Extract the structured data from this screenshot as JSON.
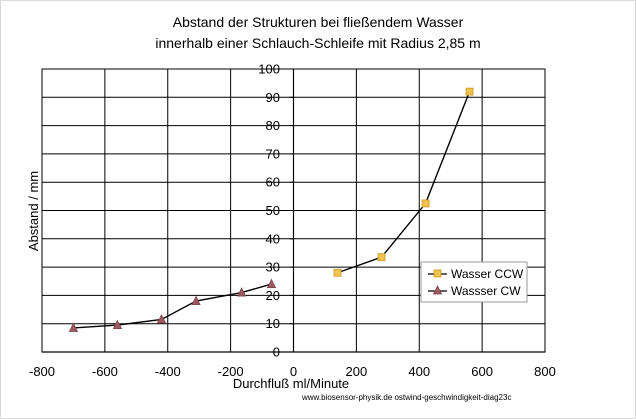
{
  "chart_data": {
    "type": "scatter",
    "title": "Abstand der Strukturen bei fließendem Wasser",
    "subtitle": "innerhalb einer Schlauch-Schleife mit Radius 2,85 m",
    "xlabel": "Durchfluß ml/Minute",
    "ylabel": "Abstand / mm",
    "xlim": [
      -800,
      800
    ],
    "ylim": [
      0,
      100
    ],
    "x_ticks": [
      "-800",
      "-600",
      "-400",
      "-200",
      "0",
      "200",
      "400",
      "600",
      "800"
    ],
    "y_ticks": [
      "0",
      "10",
      "20",
      "30",
      "40",
      "50",
      "60",
      "70",
      "80",
      "90",
      "100"
    ],
    "grid": true,
    "legend_position": "right",
    "series": [
      {
        "name": "Wasser CCW",
        "marker": "square",
        "color": "#f2c14e",
        "line_color": "#000000",
        "x": [
          140,
          280,
          420,
          560
        ],
        "y": [
          28,
          33.5,
          52.5,
          92
        ]
      },
      {
        "name": "Wassser CW",
        "marker": "triangle",
        "color": "#9b5b61",
        "line_color": "#000000",
        "x": [
          -700,
          -560,
          -420,
          -310,
          -165,
          -70
        ],
        "y": [
          8.5,
          9.5,
          11.5,
          18,
          21,
          24
        ]
      }
    ]
  },
  "footer": "www.biosensor-physik.de   ostwind-geschwindigkeit-diag23c"
}
